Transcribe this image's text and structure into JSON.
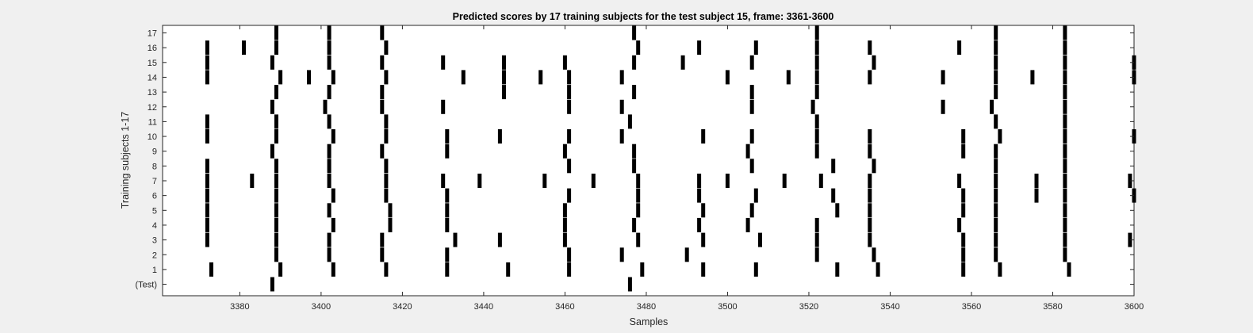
{
  "chart_data": {
    "type": "raster",
    "title": "Predicted scores by 17 training subjects for the test subject 15, frame: 3361-3600",
    "xlabel": "Samples",
    "ylabel": "Training subjects 1-17",
    "xlim": [
      3361,
      3600
    ],
    "x_ticks": [
      3380,
      3400,
      3420,
      3440,
      3460,
      3480,
      3500,
      3520,
      3540,
      3560,
      3580,
      3600
    ],
    "y_tick_labels": [
      "(Test)",
      "1",
      "2",
      "3",
      "4",
      "5",
      "6",
      "7",
      "8",
      "9",
      "10",
      "11",
      "12",
      "13",
      "14",
      "15",
      "16",
      "17"
    ],
    "colors": {
      "mark": "#000000",
      "plot_bg": "#ffffff",
      "figure_bg": "#f0f0f0",
      "axis": "#262626"
    },
    "series": [
      {
        "row": "(Test)",
        "x": [
          3388,
          3476
        ]
      },
      {
        "row": "1",
        "x": [
          3373,
          3390,
          3403,
          3416,
          3431,
          3446,
          3461,
          3479,
          3494,
          3507,
          3527,
          3537,
          3558,
          3567,
          3584
        ]
      },
      {
        "row": "2",
        "x": [
          3389,
          3402,
          3415,
          3431,
          3461,
          3474,
          3490,
          3522,
          3536,
          3558,
          3566,
          3583
        ]
      },
      {
        "row": "3",
        "x": [
          3372,
          3389,
          3402,
          3415,
          3433,
          3444,
          3460,
          3478,
          3494,
          3508,
          3522,
          3535,
          3558,
          3566,
          3583,
          3599
        ]
      },
      {
        "row": "4",
        "x": [
          3372,
          3389,
          3403,
          3417,
          3431,
          3460,
          3477,
          3493,
          3505,
          3522,
          3535,
          3557,
          3566,
          3583
        ]
      },
      {
        "row": "5",
        "x": [
          3372,
          3389,
          3402,
          3417,
          3431,
          3460,
          3478,
          3494,
          3506,
          3527,
          3535,
          3558,
          3566,
          3583
        ]
      },
      {
        "row": "6",
        "x": [
          3372,
          3389,
          3403,
          3416,
          3431,
          3461,
          3478,
          3493,
          3507,
          3526,
          3535,
          3558,
          3566,
          3576,
          3583,
          3600
        ]
      },
      {
        "row": "7",
        "x": [
          3372,
          3383,
          3389,
          3402,
          3416,
          3430,
          3439,
          3455,
          3467,
          3478,
          3493,
          3500,
          3514,
          3523,
          3535,
          3557,
          3566,
          3576,
          3583,
          3599
        ]
      },
      {
        "row": "8",
        "x": [
          3372,
          3389,
          3402,
          3416,
          3461,
          3477,
          3506,
          3526,
          3536,
          3566,
          3583
        ]
      },
      {
        "row": "9",
        "x": [
          3388,
          3402,
          3415,
          3431,
          3460,
          3477,
          3505,
          3522,
          3535,
          3558,
          3566,
          3583
        ]
      },
      {
        "row": "10",
        "x": [
          3372,
          3389,
          3403,
          3416,
          3431,
          3444,
          3461,
          3474,
          3494,
          3506,
          3522,
          3535,
          3558,
          3567,
          3583,
          3600
        ]
      },
      {
        "row": "11",
        "x": [
          3372,
          3389,
          3402,
          3416,
          3476,
          3522,
          3566,
          3583
        ]
      },
      {
        "row": "12",
        "x": [
          3388,
          3401,
          3415,
          3430,
          3461,
          3474,
          3506,
          3521,
          3553,
          3565,
          3583
        ]
      },
      {
        "row": "13",
        "x": [
          3389,
          3402,
          3415,
          3445,
          3461,
          3477,
          3506,
          3522,
          3566,
          3583
        ]
      },
      {
        "row": "14",
        "x": [
          3372,
          3390,
          3397,
          3403,
          3416,
          3435,
          3445,
          3454,
          3461,
          3474,
          3500,
          3515,
          3522,
          3535,
          3553,
          3566,
          3575,
          3583,
          3600
        ]
      },
      {
        "row": "15",
        "x": [
          3372,
          3388,
          3402,
          3415,
          3430,
          3445,
          3460,
          3477,
          3489,
          3506,
          3522,
          3536,
          3566,
          3583,
          3600
        ]
      },
      {
        "row": "16",
        "x": [
          3372,
          3381,
          3389,
          3402,
          3416,
          3478,
          3493,
          3507,
          3522,
          3535,
          3557,
          3566,
          3583
        ]
      },
      {
        "row": "17",
        "x": [
          3389,
          3402,
          3415,
          3477,
          3522,
          3566,
          3583
        ]
      }
    ]
  }
}
